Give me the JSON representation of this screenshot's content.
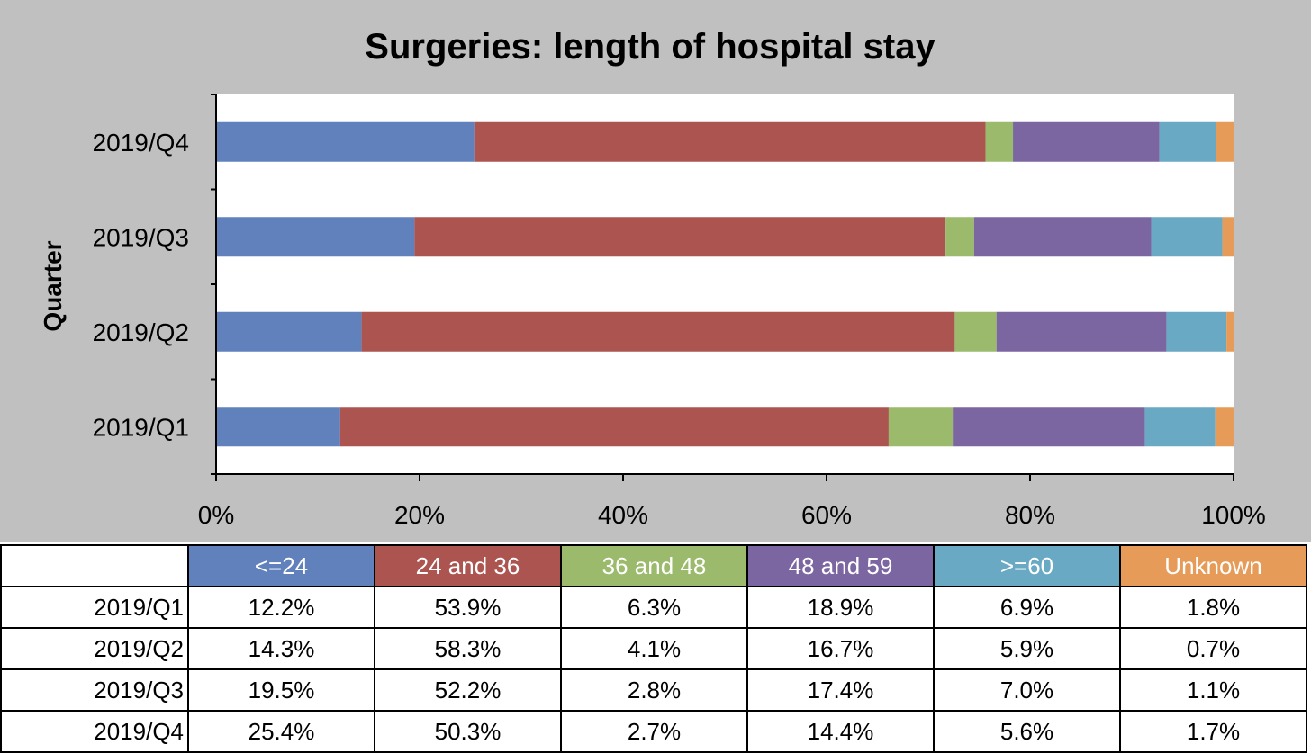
{
  "chart_data": {
    "type": "bar",
    "orientation": "horizontal",
    "stacked": "percent",
    "title": "Surgeries: length of hospital stay",
    "ylabel": "Quarter",
    "xlabel": "",
    "xlim": [
      0,
      100
    ],
    "x_ticks": [
      "0%",
      "20%",
      "40%",
      "60%",
      "80%",
      "100%"
    ],
    "categories": [
      "2019/Q1",
      "2019/Q2",
      "2019/Q3",
      "2019/Q4"
    ],
    "series": [
      {
        "name": "<=24",
        "color": "#6181bd",
        "values": [
          12.2,
          14.3,
          19.5,
          25.4
        ],
        "labels": [
          "12.2%",
          "14.3%",
          "19.5%",
          "25.4%"
        ]
      },
      {
        "name": "24 and 36",
        "color": "#ab5450",
        "values": [
          53.9,
          58.3,
          52.2,
          50.3
        ],
        "labels": [
          "53.9%",
          "58.3%",
          "52.2%",
          "50.3%"
        ]
      },
      {
        "name": "36 and 48",
        "color": "#9bba6b",
        "values": [
          6.3,
          4.1,
          2.8,
          2.7
        ],
        "labels": [
          "6.3%",
          "4.1%",
          "2.8%",
          "2.7%"
        ]
      },
      {
        "name": "48 and 59",
        "color": "#7c66a2",
        "values": [
          18.9,
          16.7,
          17.4,
          14.4
        ],
        "labels": [
          "18.9%",
          "16.7%",
          "17.4%",
          "14.4%"
        ]
      },
      {
        "name": ">=60",
        "color": "#69a9c3",
        "values": [
          6.9,
          5.9,
          7.0,
          5.6
        ],
        "labels": [
          "6.9%",
          "5.9%",
          "7.0%",
          "5.6%"
        ]
      },
      {
        "name": "Unknown",
        "color": "#e69c58",
        "values": [
          1.8,
          0.7,
          1.1,
          1.7
        ],
        "labels": [
          "1.8%",
          "0.7%",
          "1.1%",
          "1.7%"
        ]
      }
    ],
    "grid": false,
    "legend": "data-table-below"
  }
}
